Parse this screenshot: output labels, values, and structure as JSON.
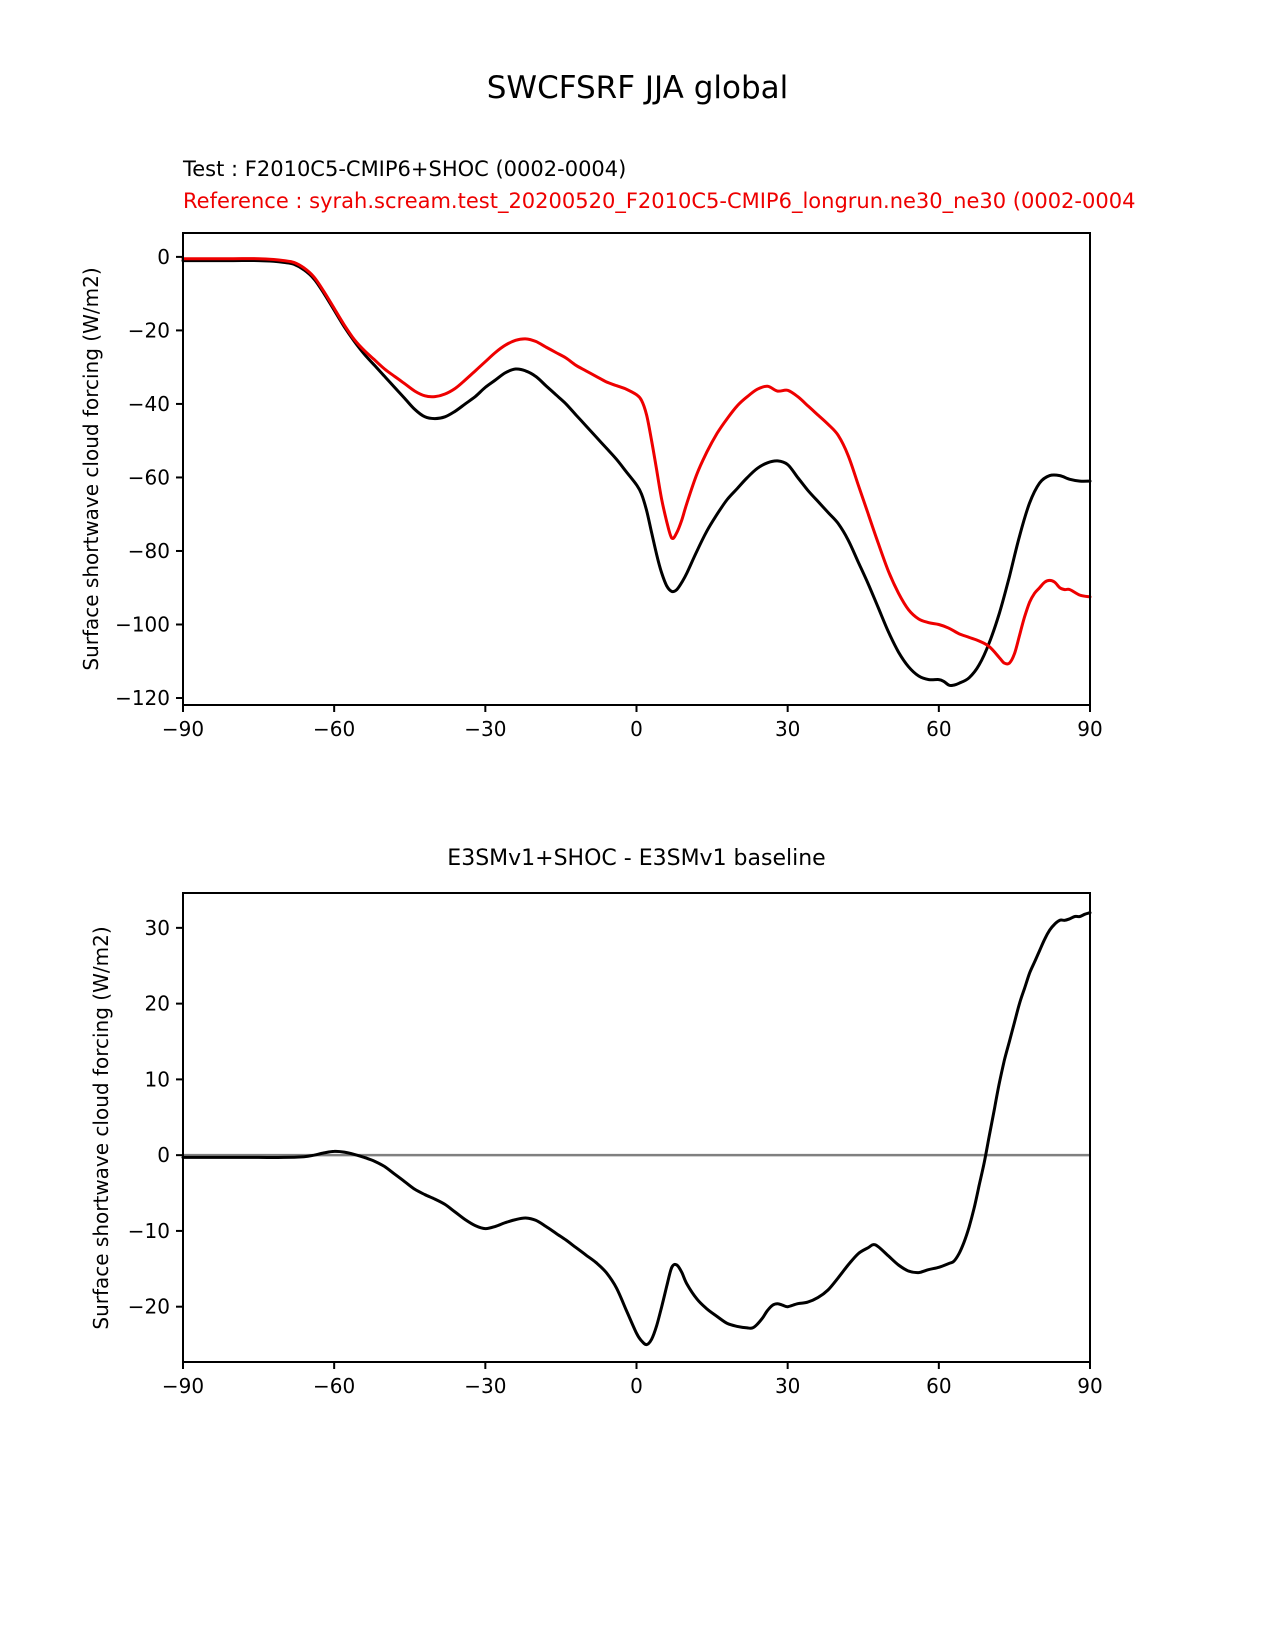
{
  "figure_title": "SWCFSRF JJA global",
  "chart_data": [
    {
      "type": "line",
      "title": "SWCFSRF JJA global",
      "xlabel": "",
      "ylabel": "Surface shortwave cloud forcing (W/m2)",
      "xlim": [
        -90,
        90
      ],
      "ylim": [
        -121.9,
        6.5
      ],
      "xticks": [
        -90,
        -60,
        -30,
        0,
        30,
        60,
        90
      ],
      "yticks": [
        0,
        -20,
        -40,
        -60,
        -80,
        -100,
        -120
      ],
      "grid": false,
      "legend": "text-above-axes",
      "series": [
        {
          "name": "Test : F2010C5-CMIP6+SHOC (0002-0004)",
          "color": "#000000",
          "x": [
            -90,
            -85,
            -80,
            -75,
            -72,
            -70,
            -68,
            -66,
            -64,
            -62,
            -60,
            -58,
            -56,
            -54,
            -52,
            -50,
            -48,
            -46,
            -44,
            -42,
            -40,
            -38,
            -36,
            -34,
            -32,
            -30,
            -28,
            -26,
            -24,
            -22,
            -20,
            -18,
            -16,
            -14,
            -12,
            -10,
            -8,
            -6,
            -4,
            -2,
            0,
            1,
            2,
            3,
            4,
            5,
            6,
            7,
            8,
            9,
            10,
            12,
            14,
            16,
            18,
            20,
            22,
            24,
            26,
            28,
            30,
            32,
            34,
            36,
            38,
            40,
            42,
            44,
            46,
            48,
            50,
            52,
            54,
            56,
            58,
            60,
            61,
            62,
            63,
            64,
            66,
            68,
            70,
            72,
            74,
            76,
            78,
            80,
            82,
            84,
            86,
            88,
            90
          ],
          "y": [
            -1,
            -1,
            -1,
            -1,
            -1.2,
            -1.5,
            -2,
            -3.5,
            -6,
            -10,
            -14.5,
            -19,
            -23,
            -26.5,
            -29.5,
            -32.5,
            -35.5,
            -38.5,
            -41.5,
            -43.5,
            -44,
            -43.5,
            -42,
            -40,
            -38,
            -35.5,
            -33.5,
            -31.5,
            -30.5,
            -31,
            -32.5,
            -35,
            -37.5,
            -40,
            -43,
            -46,
            -49,
            -52,
            -55,
            -58.5,
            -62,
            -64.5,
            -69,
            -75,
            -81,
            -86,
            -89.5,
            -91,
            -90.5,
            -88.5,
            -86,
            -80,
            -74.5,
            -70,
            -66,
            -63,
            -60,
            -57.5,
            -56,
            -55.5,
            -56.5,
            -60,
            -63.5,
            -66.5,
            -69.5,
            -72.5,
            -77,
            -83,
            -89,
            -95.5,
            -102,
            -107.5,
            -111.5,
            -114,
            -115,
            -115,
            -115.5,
            -116.5,
            -116.5,
            -116,
            -114.5,
            -111,
            -105,
            -97,
            -87,
            -76,
            -67,
            -61.5,
            -59.5,
            -59.5,
            -60.5,
            -61,
            -61
          ]
        },
        {
          "name": "Reference : syrah.scream.test_20200520_F2010C5-CMIP6_longrun.ne30_ne30 (0002-0004",
          "color": "#ee0000",
          "x": [
            -90,
            -85,
            -80,
            -75,
            -72,
            -70,
            -68,
            -66,
            -64,
            -62,
            -60,
            -58,
            -56,
            -54,
            -52,
            -50,
            -48,
            -46,
            -44,
            -42,
            -40,
            -38,
            -36,
            -34,
            -32,
            -30,
            -28,
            -26,
            -24,
            -22,
            -20,
            -18,
            -16,
            -14,
            -12,
            -10,
            -8,
            -6,
            -4,
            -2,
            0,
            1,
            2,
            3,
            4,
            5,
            6,
            7,
            8,
            9,
            10,
            12,
            14,
            16,
            18,
            20,
            22,
            24,
            26,
            28,
            30,
            32,
            34,
            36,
            38,
            40,
            42,
            44,
            46,
            48,
            50,
            52,
            54,
            56,
            58,
            60,
            62,
            64,
            66,
            68,
            70,
            72,
            73,
            74,
            75,
            76,
            77,
            78,
            79,
            80,
            81,
            82,
            83,
            84,
            85,
            86,
            88,
            90
          ],
          "y": [
            -0.5,
            -0.5,
            -0.5,
            -0.5,
            -0.7,
            -1,
            -1.5,
            -3,
            -5.5,
            -9.5,
            -14,
            -18.5,
            -22.5,
            -25.5,
            -28,
            -30.5,
            -32.5,
            -34.5,
            -36.5,
            -37.8,
            -38,
            -37.3,
            -35.8,
            -33.5,
            -31,
            -28.5,
            -26,
            -24,
            -22.7,
            -22.3,
            -23,
            -24.5,
            -26,
            -27.5,
            -29.5,
            -31,
            -32.5,
            -34,
            -35,
            -36,
            -37.5,
            -39,
            -43,
            -50,
            -58,
            -66,
            -72,
            -76.5,
            -75,
            -71.5,
            -67,
            -59,
            -53,
            -48,
            -44,
            -40.5,
            -38,
            -36,
            -35.2,
            -36.5,
            -36.3,
            -38,
            -40.5,
            -43,
            -45.5,
            -48.5,
            -54,
            -62,
            -70,
            -78,
            -85.5,
            -91.5,
            -96,
            -98.5,
            -99.5,
            -100,
            -101,
            -102.5,
            -103.5,
            -104.5,
            -106,
            -109,
            -110.5,
            -110.5,
            -108,
            -103,
            -98,
            -94,
            -91.5,
            -90,
            -88.5,
            -88,
            -88.5,
            -90,
            -90.5,
            -90.5,
            -92,
            -92.5
          ]
        }
      ]
    },
    {
      "type": "line",
      "title": "E3SMv1+SHOC - E3SMv1 baseline",
      "xlabel": "",
      "ylabel": "Surface shortwave cloud forcing (W/m2)",
      "xlim": [
        -90,
        90
      ],
      "ylim": [
        -27.3,
        34.6
      ],
      "xticks": [
        -90,
        -60,
        -30,
        0,
        30,
        60,
        90
      ],
      "yticks": [
        30,
        20,
        10,
        0,
        -10,
        -20
      ],
      "grid": false,
      "refline": {
        "y": 0,
        "color": "#808080"
      },
      "series": [
        {
          "name": "E3SMv1+SHOC - E3SMv1 baseline",
          "color": "#000000",
          "x": [
            -90,
            -85,
            -80,
            -75,
            -70,
            -66,
            -64,
            -62,
            -60,
            -58,
            -56,
            -54,
            -52,
            -50,
            -48,
            -46,
            -44,
            -42,
            -40,
            -38,
            -36,
            -34,
            -32,
            -30,
            -28,
            -26,
            -24,
            -22,
            -20,
            -18,
            -16,
            -14,
            -12,
            -10,
            -8,
            -6,
            -4,
            -2,
            0,
            1,
            2,
            3,
            4,
            5,
            6,
            7,
            8,
            9,
            10,
            12,
            14,
            16,
            18,
            20,
            22,
            23,
            24,
            25,
            26,
            27,
            28,
            29,
            30,
            32,
            34,
            36,
            38,
            40,
            42,
            44,
            46,
            47,
            48,
            50,
            52,
            54,
            56,
            58,
            60,
            62,
            63,
            64,
            65,
            66,
            67,
            68,
            69,
            70,
            71,
            72,
            73,
            74,
            75,
            76,
            77,
            78,
            79,
            80,
            81,
            82,
            83,
            84,
            85,
            86,
            87,
            88,
            89,
            90
          ],
          "y": [
            -0.3,
            -0.3,
            -0.3,
            -0.3,
            -0.3,
            -0.2,
            0,
            0.3,
            0.5,
            0.4,
            0.1,
            -0.3,
            -0.8,
            -1.5,
            -2.5,
            -3.5,
            -4.5,
            -5.2,
            -5.8,
            -6.5,
            -7.5,
            -8.5,
            -9.3,
            -9.7,
            -9.4,
            -8.9,
            -8.5,
            -8.3,
            -8.6,
            -9.4,
            -10.3,
            -11.2,
            -12.2,
            -13.2,
            -14.2,
            -15.5,
            -17.5,
            -20.5,
            -23.5,
            -24.5,
            -25,
            -24.3,
            -22.5,
            -20,
            -17.3,
            -14.8,
            -14.5,
            -15.5,
            -17,
            -19,
            -20.3,
            -21.3,
            -22.2,
            -22.6,
            -22.8,
            -22.8,
            -22.3,
            -21.5,
            -20.5,
            -19.8,
            -19.6,
            -19.8,
            -20,
            -19.6,
            -19.4,
            -18.8,
            -17.8,
            -16.2,
            -14.5,
            -13,
            -12.2,
            -11.8,
            -12.1,
            -13.3,
            -14.5,
            -15.3,
            -15.5,
            -15.1,
            -14.8,
            -14.3,
            -14,
            -13,
            -11.5,
            -9.5,
            -7,
            -4,
            -1,
            2.5,
            6,
            9.5,
            12.5,
            15,
            17.5,
            20,
            22,
            24,
            25.5,
            27,
            28.5,
            29.7,
            30.5,
            31,
            31,
            31.2,
            31.5,
            31.5,
            31.8,
            32
          ]
        }
      ]
    }
  ]
}
